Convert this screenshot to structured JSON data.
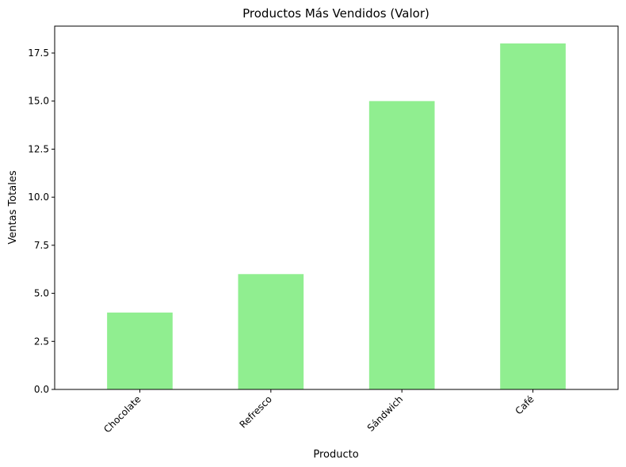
{
  "chart_data": {
    "type": "bar",
    "title": "Productos Más Vendidos (Valor)",
    "xlabel": "Producto",
    "ylabel": "Ventas Totales",
    "categories": [
      "Chocolate",
      "Refresco",
      "Sándwich",
      "Café"
    ],
    "values": [
      4,
      6,
      15,
      18
    ],
    "ylim": [
      0,
      18.9
    ],
    "yticks": [
      0.0,
      2.5,
      5.0,
      7.5,
      10.0,
      12.5,
      15.0,
      17.5
    ],
    "ytick_labels": [
      "0.0",
      "2.5",
      "5.0",
      "7.5",
      "10.0",
      "12.5",
      "15.0",
      "17.5"
    ],
    "bar_color": "#90ee90",
    "grid": false,
    "legend": "none"
  }
}
